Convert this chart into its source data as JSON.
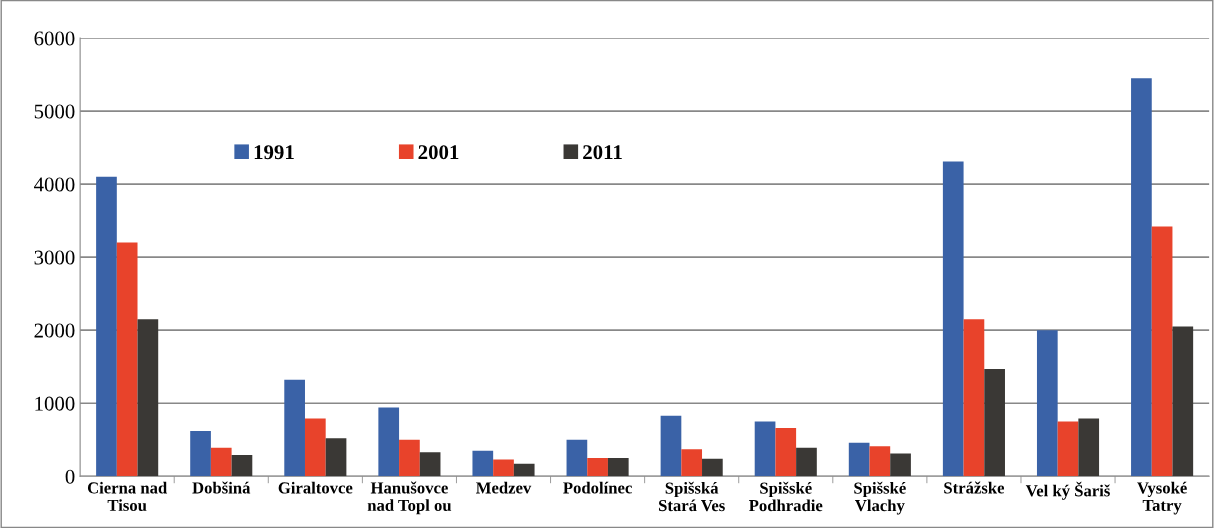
{
  "chart_data": {
    "type": "bar",
    "categories": [
      "Cierna nad\nTisou",
      "Dobšiná",
      "Giraltovce",
      "Hanušovce\nnad Topl ou",
      "Medzev",
      "Podolínec",
      "Spišská\nStará Ves",
      "Spišské\nPodhradie",
      "Spišské\nVlachy",
      "Strážske",
      "Vel ký Šariš",
      "Vysoké\nTatry"
    ],
    "series": [
      {
        "name": "1991",
        "color": "#3a62a7",
        "values": [
          4100,
          620,
          1320,
          940,
          350,
          500,
          830,
          750,
          460,
          4310,
          2000,
          5450
        ]
      },
      {
        "name": "2001",
        "color": "#e8432b",
        "values": [
          3200,
          390,
          790,
          500,
          230,
          250,
          370,
          660,
          410,
          2150,
          750,
          3420
        ]
      },
      {
        "name": "2011",
        "color": "#3a3835",
        "values": [
          2150,
          290,
          520,
          330,
          170,
          250,
          240,
          390,
          310,
          1470,
          790,
          2050
        ]
      }
    ],
    "ylim": [
      0,
      6000
    ],
    "yticks": [
      0,
      1000,
      2000,
      3000,
      4000,
      5000,
      6000
    ],
    "grid": "y",
    "legend": "top left"
  }
}
